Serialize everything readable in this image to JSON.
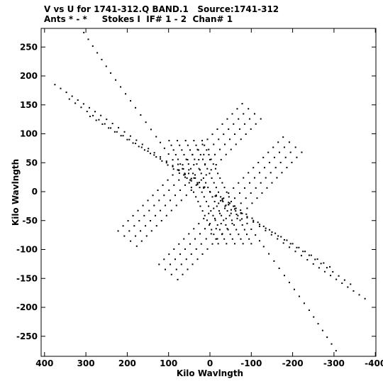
{
  "header": {
    "line1": "V vs U for 1741-312.Q BAND.1   Source:1741-312",
    "line2": "Ants * - *     Stokes I  IF# 1 - 2  Chan# 1"
  },
  "chart_data": {
    "type": "scatter",
    "title": "V vs U for 1741-312.Q BAND.1   Source:1741-312",
    "subtitle": "Ants * - *     Stokes I  IF# 1 - 2  Chan# 1",
    "xlabel": "Kilo Wavlngth",
    "ylabel": "Kilo Wavlngth",
    "xlim": [
      400,
      -400
    ],
    "ylim": [
      -285,
      285
    ],
    "x_ticks": [
      400,
      300,
      200,
      100,
      0,
      -100,
      -200,
      -300,
      -400
    ],
    "y_ticks": [
      250,
      200,
      150,
      100,
      50,
      0,
      -50,
      -100,
      -150,
      -200,
      -250
    ],
    "x_tick_labels": [
      "400",
      "300",
      "200",
      "100",
      "0",
      "-100",
      "-200",
      "-300",
      "-400"
    ],
    "y_tick_labels": [
      "250",
      "200",
      "150",
      "100",
      "50",
      "0",
      "-50",
      "-100",
      "-150",
      "-200",
      "-250"
    ],
    "grid": false,
    "marker": "dot",
    "arms": [
      {
        "x": [
          375,
          250,
          120,
          30,
          0,
          -30,
          -120,
          -250,
          -375
        ],
        "y": [
          185,
          125,
          60,
          15,
          0,
          -15,
          -60,
          -125,
          -185
        ]
      },
      {
        "x": [
          305,
          240,
          180,
          130,
          90,
          0,
          -90,
          -130,
          -180,
          -240,
          -305
        ],
        "y": [
          275,
          205,
          145,
          95,
          55,
          0,
          -55,
          -95,
          -145,
          -205,
          -275
        ]
      },
      {
        "x": [
          340,
          240,
          150,
          60,
          0,
          -60,
          -150,
          -240,
          -340
        ],
        "y": [
          160,
          110,
          70,
          30,
          0,
          -30,
          -70,
          -110,
          -160
        ]
      },
      {
        "x": [
          290,
          200,
          130,
          60,
          0,
          -60,
          -130,
          -200,
          -290
        ],
        "y": [
          130,
          90,
          60,
          25,
          0,
          -25,
          -60,
          -90,
          -130
        ]
      }
    ],
    "grid_tracks": {
      "center": [
        0,
        0
      ],
      "ring_offsets": [
        45,
        70,
        95,
        120
      ],
      "spoke_offsets_x": [
        -40,
        -20,
        0,
        20,
        40
      ]
    }
  }
}
